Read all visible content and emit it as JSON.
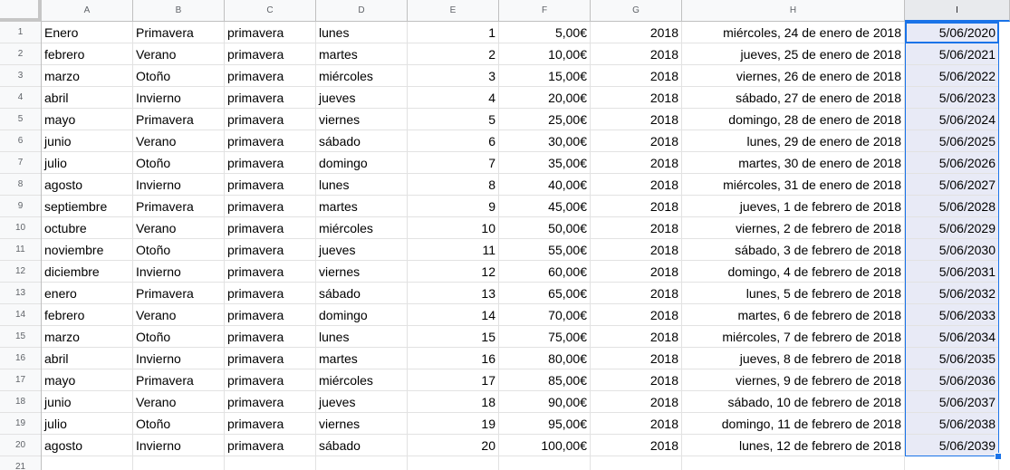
{
  "columns": [
    "A",
    "B",
    "C",
    "D",
    "E",
    "F",
    "G",
    "H",
    "I"
  ],
  "row_numbers": [
    "1",
    "2",
    "3",
    "4",
    "5",
    "6",
    "7",
    "8",
    "9",
    "10",
    "11",
    "12",
    "13",
    "14",
    "15",
    "16",
    "17",
    "18",
    "19",
    "20",
    "21"
  ],
  "selected_column": "I",
  "rows": [
    {
      "a": "Enero",
      "b": "Primavera",
      "c": "primavera",
      "d": "lunes",
      "e": "1",
      "f": "5,00€",
      "g": "2018",
      "h": "miércoles, 24 de enero de 2018",
      "i": "5/06/2020"
    },
    {
      "a": "febrero",
      "b": "Verano",
      "c": "primavera",
      "d": "martes",
      "e": "2",
      "f": "10,00€",
      "g": "2018",
      "h": "jueves, 25 de enero de 2018",
      "i": "5/06/2021"
    },
    {
      "a": "marzo",
      "b": "Otoño",
      "c": "primavera",
      "d": "miércoles",
      "e": "3",
      "f": "15,00€",
      "g": "2018",
      "h": "viernes, 26 de enero de 2018",
      "i": "5/06/2022"
    },
    {
      "a": "abril",
      "b": "Invierno",
      "c": "primavera",
      "d": "jueves",
      "e": "4",
      "f": "20,00€",
      "g": "2018",
      "h": "sábado, 27 de enero de 2018",
      "i": "5/06/2023"
    },
    {
      "a": "mayo",
      "b": "Primavera",
      "c": "primavera",
      "d": "viernes",
      "e": "5",
      "f": "25,00€",
      "g": "2018",
      "h": "domingo, 28 de enero de 2018",
      "i": "5/06/2024"
    },
    {
      "a": "junio",
      "b": "Verano",
      "c": "primavera",
      "d": "sábado",
      "e": "6",
      "f": "30,00€",
      "g": "2018",
      "h": "lunes, 29 de enero de 2018",
      "i": "5/06/2025"
    },
    {
      "a": "julio",
      "b": "Otoño",
      "c": "primavera",
      "d": "domingo",
      "e": "7",
      "f": "35,00€",
      "g": "2018",
      "h": "martes, 30 de enero de 2018",
      "i": "5/06/2026"
    },
    {
      "a": "agosto",
      "b": "Invierno",
      "c": "primavera",
      "d": "lunes",
      "e": "8",
      "f": "40,00€",
      "g": "2018",
      "h": "miércoles, 31 de enero de 2018",
      "i": "5/06/2027"
    },
    {
      "a": "septiembre",
      "b": "Primavera",
      "c": "primavera",
      "d": "martes",
      "e": "9",
      "f": "45,00€",
      "g": "2018",
      "h": "jueves, 1 de febrero de 2018",
      "i": "5/06/2028"
    },
    {
      "a": "octubre",
      "b": "Verano",
      "c": "primavera",
      "d": "miércoles",
      "e": "10",
      "f": "50,00€",
      "g": "2018",
      "h": "viernes, 2 de febrero de 2018",
      "i": "5/06/2029"
    },
    {
      "a": "noviembre",
      "b": "Otoño",
      "c": "primavera",
      "d": "jueves",
      "e": "11",
      "f": "55,00€",
      "g": "2018",
      "h": "sábado, 3 de febrero de 2018",
      "i": "5/06/2030"
    },
    {
      "a": "diciembre",
      "b": "Invierno",
      "c": "primavera",
      "d": "viernes",
      "e": "12",
      "f": "60,00€",
      "g": "2018",
      "h": "domingo, 4 de febrero de 2018",
      "i": "5/06/2031"
    },
    {
      "a": "enero",
      "b": "Primavera",
      "c": "primavera",
      "d": "sábado",
      "e": "13",
      "f": "65,00€",
      "g": "2018",
      "h": "lunes, 5 de febrero de 2018",
      "i": "5/06/2032"
    },
    {
      "a": "febrero",
      "b": "Verano",
      "c": "primavera",
      "d": "domingo",
      "e": "14",
      "f": "70,00€",
      "g": "2018",
      "h": "martes, 6 de febrero de 2018",
      "i": "5/06/2033"
    },
    {
      "a": "marzo",
      "b": "Otoño",
      "c": "primavera",
      "d": "lunes",
      "e": "15",
      "f": "75,00€",
      "g": "2018",
      "h": "miércoles, 7 de febrero de 2018",
      "i": "5/06/2034"
    },
    {
      "a": "abril",
      "b": "Invierno",
      "c": "primavera",
      "d": "martes",
      "e": "16",
      "f": "80,00€",
      "g": "2018",
      "h": "jueves, 8 de febrero de 2018",
      "i": "5/06/2035"
    },
    {
      "a": "mayo",
      "b": "Primavera",
      "c": "primavera",
      "d": "miércoles",
      "e": "17",
      "f": "85,00€",
      "g": "2018",
      "h": "viernes, 9 de febrero de 2018",
      "i": "5/06/2036"
    },
    {
      "a": "junio",
      "b": "Verano",
      "c": "primavera",
      "d": "jueves",
      "e": "18",
      "f": "90,00€",
      "g": "2018",
      "h": "sábado, 10 de febrero de 2018",
      "i": "5/06/2037"
    },
    {
      "a": "julio",
      "b": "Otoño",
      "c": "primavera",
      "d": "viernes",
      "e": "19",
      "f": "95,00€",
      "g": "2018",
      "h": "domingo, 11 de febrero de 2018",
      "i": "5/06/2038"
    },
    {
      "a": "agosto",
      "b": "Invierno",
      "c": "primavera",
      "d": "sábado",
      "e": "20",
      "f": "100,00€",
      "g": "2018",
      "h": "lunes, 12 de febrero de 2018",
      "i": "5/06/2039"
    },
    {
      "a": "",
      "b": "",
      "c": "",
      "d": "",
      "e": "",
      "f": "",
      "g": "",
      "h": "",
      "i": ""
    }
  ]
}
